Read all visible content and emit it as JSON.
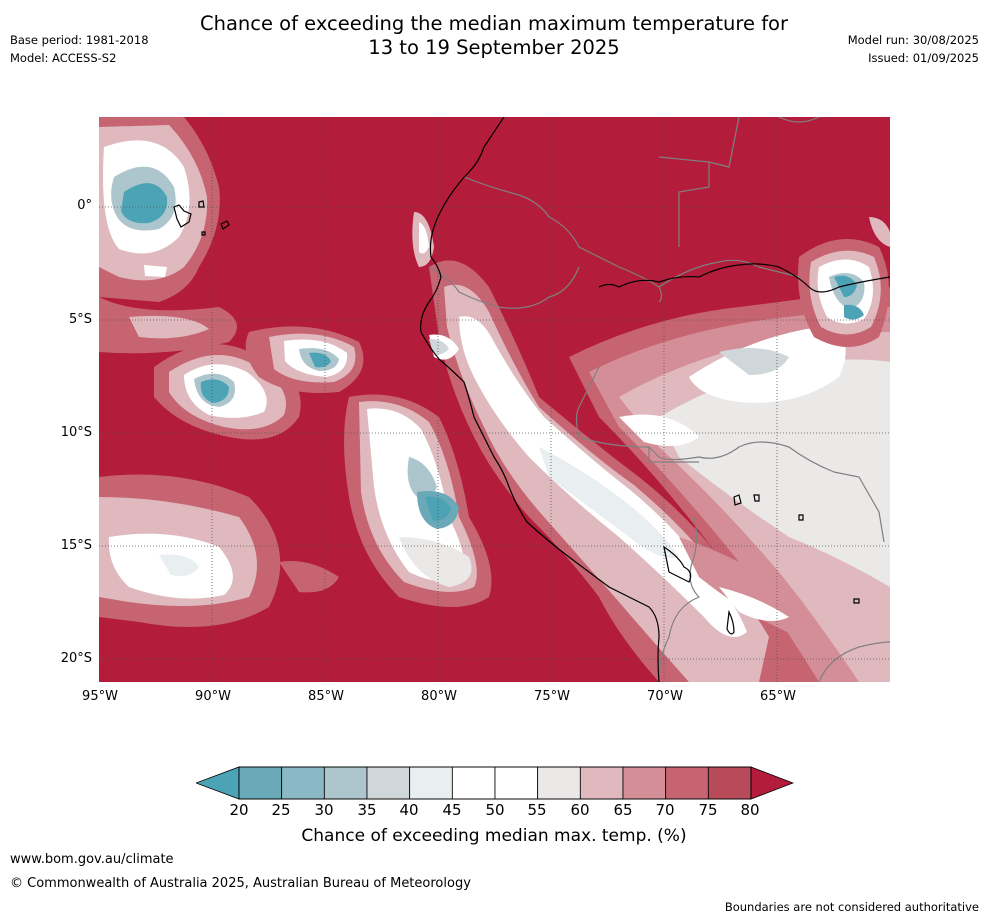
{
  "title_line1": "Chance of exceeding the median maximum temperature for",
  "title_line2": "13 to 19 September 2025",
  "meta_left": {
    "base_period": "Base period: 1981-2018",
    "model": "Model: ACCESS-S2"
  },
  "meta_right": {
    "model_run": "Model run: 30/08/2025",
    "issued": "Issued: 01/09/2025"
  },
  "map": {
    "lon_range": [
      -95,
      -60
    ],
    "lat_range": [
      -21,
      4
    ],
    "lat_ticks": [
      "0°",
      "5°S",
      "10°S",
      "15°S",
      "20°S"
    ],
    "lon_ticks": [
      "95°W",
      "90°W",
      "85°W",
      "80°W",
      "75°W",
      "70°W",
      "65°W"
    ],
    "grid": "dotted"
  },
  "colorbar": {
    "title": "Chance of exceeding median max. temp. (%)",
    "labels": [
      "20",
      "25",
      "30",
      "35",
      "40",
      "45",
      "50",
      "55",
      "60",
      "65",
      "70",
      "75",
      "80"
    ],
    "colors": [
      "#4ca3b5",
      "#69a9b8",
      "#8ab8c4",
      "#adc6cd",
      "#cfd7da",
      "#e9eef0",
      "#ffffff",
      "#ffffff",
      "#ebe8e8",
      "#dfb9be",
      "#d38e97",
      "#c66472",
      "#b84b5a",
      "#b31c3a"
    ]
  },
  "footer": {
    "url": "www.bom.gov.au/climate",
    "copyright": "© Commonwealth of Australia 2025, Australian Bureau of Meteorology",
    "note": "Boundaries are not considered authoritative"
  }
}
